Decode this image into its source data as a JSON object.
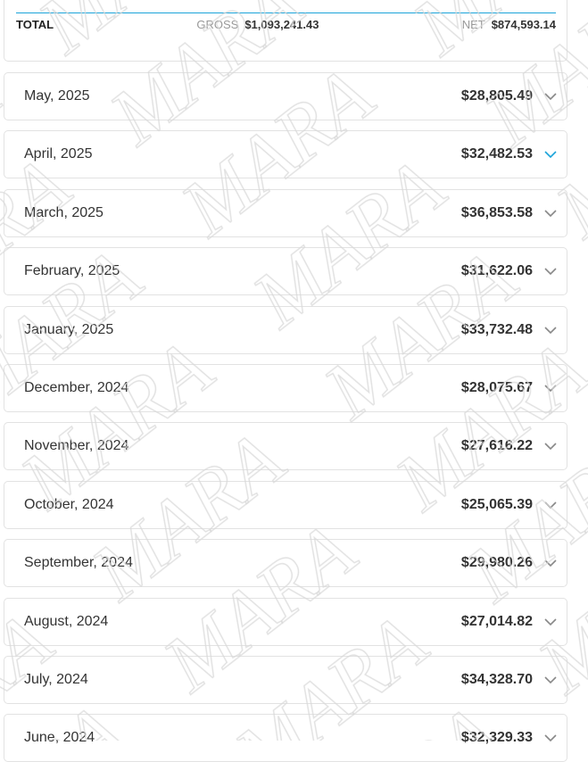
{
  "watermark": "MARA",
  "accent": "#1aa3d9",
  "total": {
    "label": "TOTAL",
    "gross_label": "GROSS",
    "gross": "$1,093,241.43",
    "net_label": "NET",
    "net": "$874,593.14"
  },
  "months": [
    {
      "name": "May, 2025",
      "amount": "$28,805.49",
      "expanded": false
    },
    {
      "name": "April, 2025",
      "amount": "$32,482.53",
      "expanded": true
    },
    {
      "name": "March, 2025",
      "amount": "$36,853.58",
      "expanded": false
    },
    {
      "name": "February, 2025",
      "amount": "$31,622.06",
      "expanded": false
    },
    {
      "name": "January, 2025",
      "amount": "$33,732.48",
      "expanded": false
    },
    {
      "name": "December, 2024",
      "amount": "$28,075.67",
      "expanded": false
    },
    {
      "name": "November, 2024",
      "amount": "$27,616.22",
      "expanded": false
    },
    {
      "name": "October, 2024",
      "amount": "$25,065.39",
      "expanded": false
    },
    {
      "name": "September, 2024",
      "amount": "$29,980.26",
      "expanded": false
    },
    {
      "name": "August, 2024",
      "amount": "$27,014.82",
      "expanded": false
    },
    {
      "name": "July, 2024",
      "amount": "$34,328.70",
      "expanded": false
    },
    {
      "name": "June, 2024",
      "amount": "$32,329.33",
      "expanded": false
    }
  ]
}
